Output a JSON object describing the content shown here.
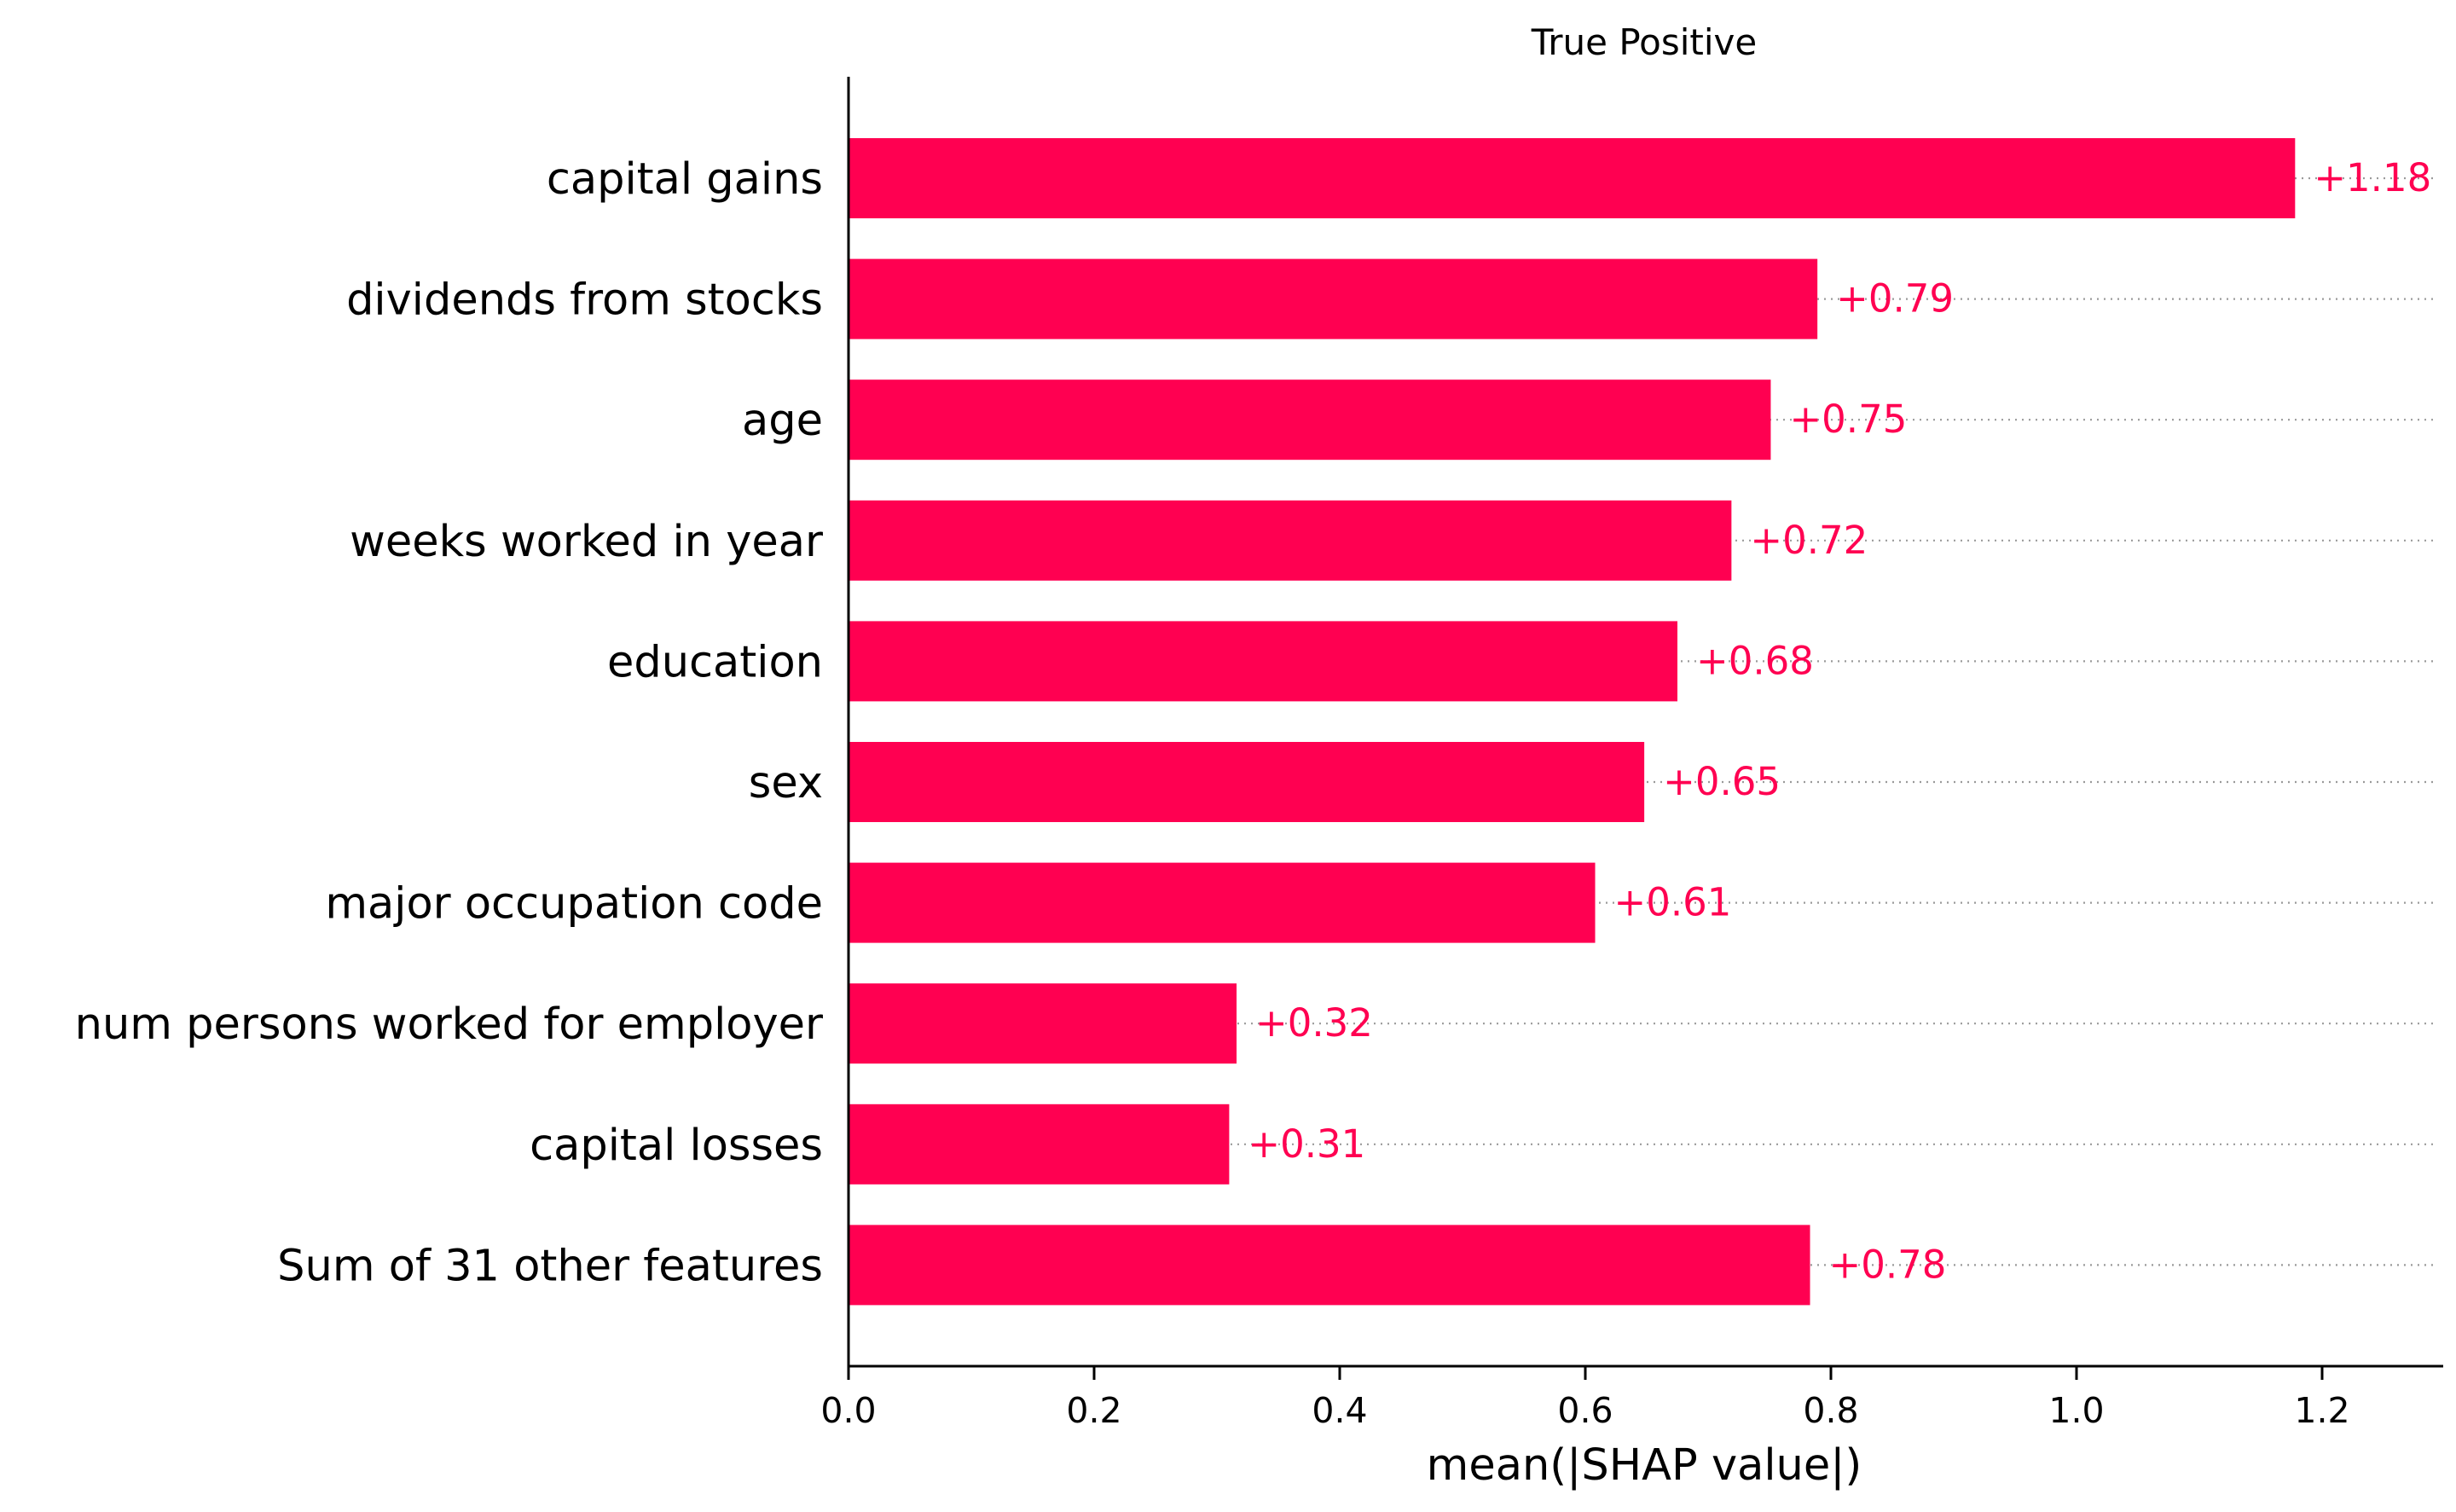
{
  "chart_data": {
    "type": "bar",
    "orientation": "horizontal",
    "title": "True Positive",
    "xlabel": "mean(|SHAP value|)",
    "ylabel": "",
    "xlim": [
      0,
      1.3
    ],
    "xticks": [
      0.0,
      0.2,
      0.4,
      0.6,
      0.8,
      1.0,
      1.2
    ],
    "xtick_labels": [
      "0.0",
      "0.2",
      "0.4",
      "0.6",
      "0.8",
      "1.0",
      "1.2"
    ],
    "categories": [
      "capital gains",
      "dividends from stocks",
      "age",
      "weeks worked in year",
      "education",
      "sex",
      "major occupation code",
      "num persons worked for employer",
      "capital losses",
      "Sum of 31 other features"
    ],
    "values": [
      1.178,
      0.789,
      0.751,
      0.719,
      0.675,
      0.648,
      0.608,
      0.316,
      0.31,
      0.783
    ],
    "value_labels": [
      "+1.18",
      "+0.79",
      "+0.75",
      "+0.72",
      "+0.68",
      "+0.65",
      "+0.61",
      "+0.32",
      "+0.31",
      "+0.78"
    ],
    "bar_color": "#ff0051",
    "label_color": "#ff0051",
    "grid": false,
    "legend": false
  }
}
